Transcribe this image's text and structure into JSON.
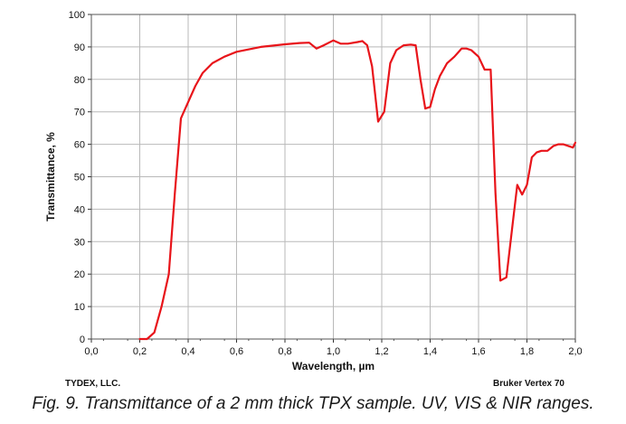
{
  "chart_data": {
    "type": "line",
    "title": "",
    "xlabel": "Wavelength, µm",
    "ylabel": "Transmittance, %",
    "xlim": [
      0.0,
      2.0
    ],
    "ylim": [
      0,
      100
    ],
    "x_ticks": [
      "0,0",
      "0,2",
      "0,4",
      "0,6",
      "0,8",
      "1,0",
      "1,2",
      "1,4",
      "1,6",
      "1,8",
      "2,0"
    ],
    "y_ticks": [
      "0",
      "10",
      "20",
      "30",
      "40",
      "50",
      "60",
      "70",
      "80",
      "90",
      "100"
    ],
    "grid": true,
    "series": [
      {
        "name": "TPX 2 mm",
        "color": "#e8141a",
        "x": [
          0.2,
          0.23,
          0.26,
          0.29,
          0.32,
          0.345,
          0.37,
          0.4,
          0.43,
          0.46,
          0.5,
          0.55,
          0.6,
          0.7,
          0.8,
          0.86,
          0.9,
          0.93,
          0.96,
          1.0,
          1.03,
          1.06,
          1.1,
          1.12,
          1.14,
          1.16,
          1.185,
          1.21,
          1.235,
          1.26,
          1.29,
          1.32,
          1.34,
          1.36,
          1.38,
          1.4,
          1.42,
          1.44,
          1.47,
          1.5,
          1.53,
          1.55,
          1.57,
          1.6,
          1.625,
          1.65,
          1.67,
          1.69,
          1.715,
          1.74,
          1.76,
          1.78,
          1.8,
          1.82,
          1.84,
          1.86,
          1.885,
          1.91,
          1.93,
          1.95,
          1.99,
          2.0
        ],
        "values": [
          0,
          0,
          2,
          10,
          20,
          45,
          68,
          73,
          78,
          82,
          85,
          87,
          88.5,
          90,
          90.8,
          91.2,
          91.3,
          89.5,
          90.5,
          92,
          91,
          91,
          91.5,
          91.8,
          90.5,
          84,
          67,
          70,
          85,
          89,
          90.5,
          90.7,
          90.5,
          80,
          71,
          71.5,
          77,
          81,
          85,
          87,
          89.5,
          89.5,
          89,
          87,
          83,
          83,
          45,
          18,
          19,
          35,
          47.5,
          44.5,
          47.5,
          56,
          57.5,
          58,
          58,
          59.5,
          60,
          60,
          59,
          60.5
        ]
      }
    ],
    "annotations": {
      "left_note": "TYDEX, LLC.",
      "right_note": "Bruker Vertex 70"
    }
  },
  "caption": "Fig.  9. Transmittance of a 2 mm thick TPX sample. UV, VIS & NIR ranges."
}
